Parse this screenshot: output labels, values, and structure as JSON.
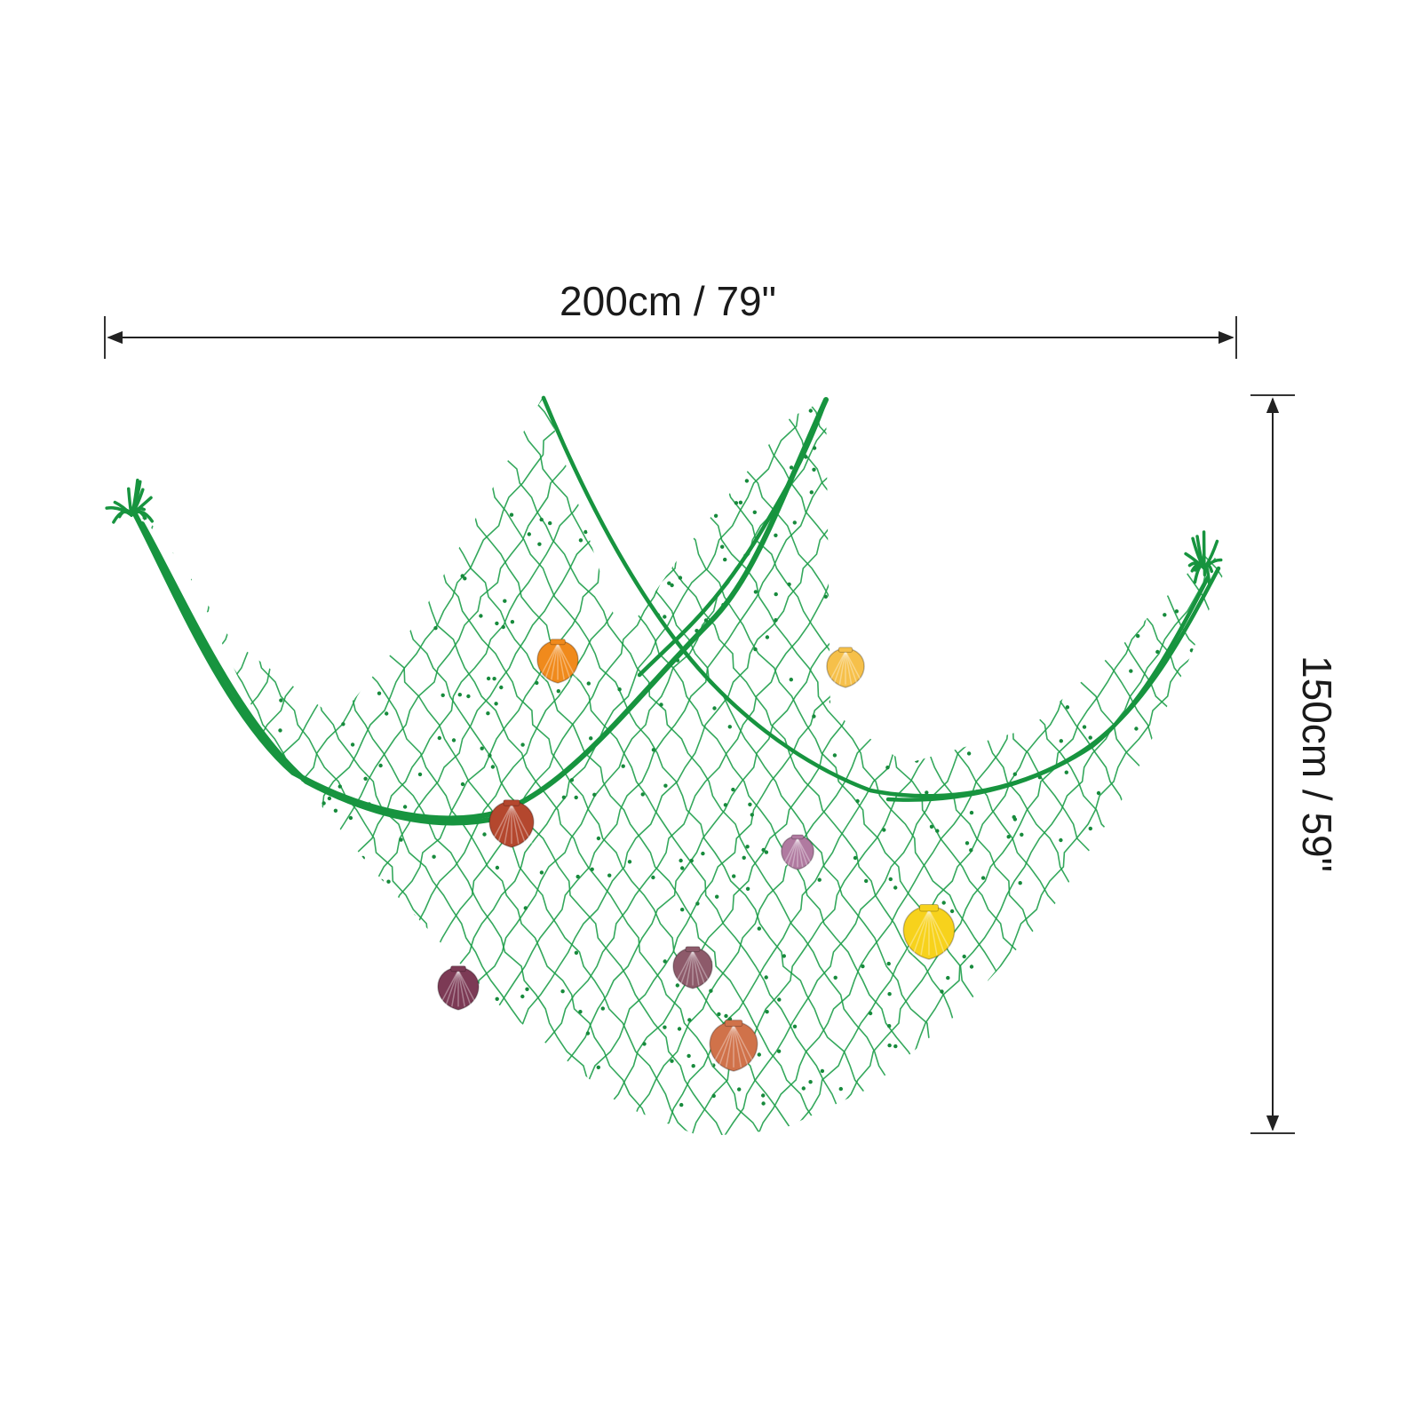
{
  "dimensions": {
    "width_label": "200cm / 79\"",
    "height_label": "150cm / 59\""
  },
  "product": {
    "net_color": "#1e9e4a",
    "rope_color": "#17943f",
    "shells": [
      {
        "name": "shell-orange",
        "color": "#f08a1c"
      },
      {
        "name": "shell-yellow-light",
        "color": "#f6c04a"
      },
      {
        "name": "shell-rust",
        "color": "#b4472e"
      },
      {
        "name": "shell-lavender",
        "color": "#b07aa0"
      },
      {
        "name": "shell-yellow",
        "color": "#f7d21c"
      },
      {
        "name": "shell-spotted-brown",
        "color": "#8d5a6a"
      },
      {
        "name": "shell-plum",
        "color": "#7c3a55"
      },
      {
        "name": "shell-coral",
        "color": "#d0724a"
      }
    ]
  }
}
